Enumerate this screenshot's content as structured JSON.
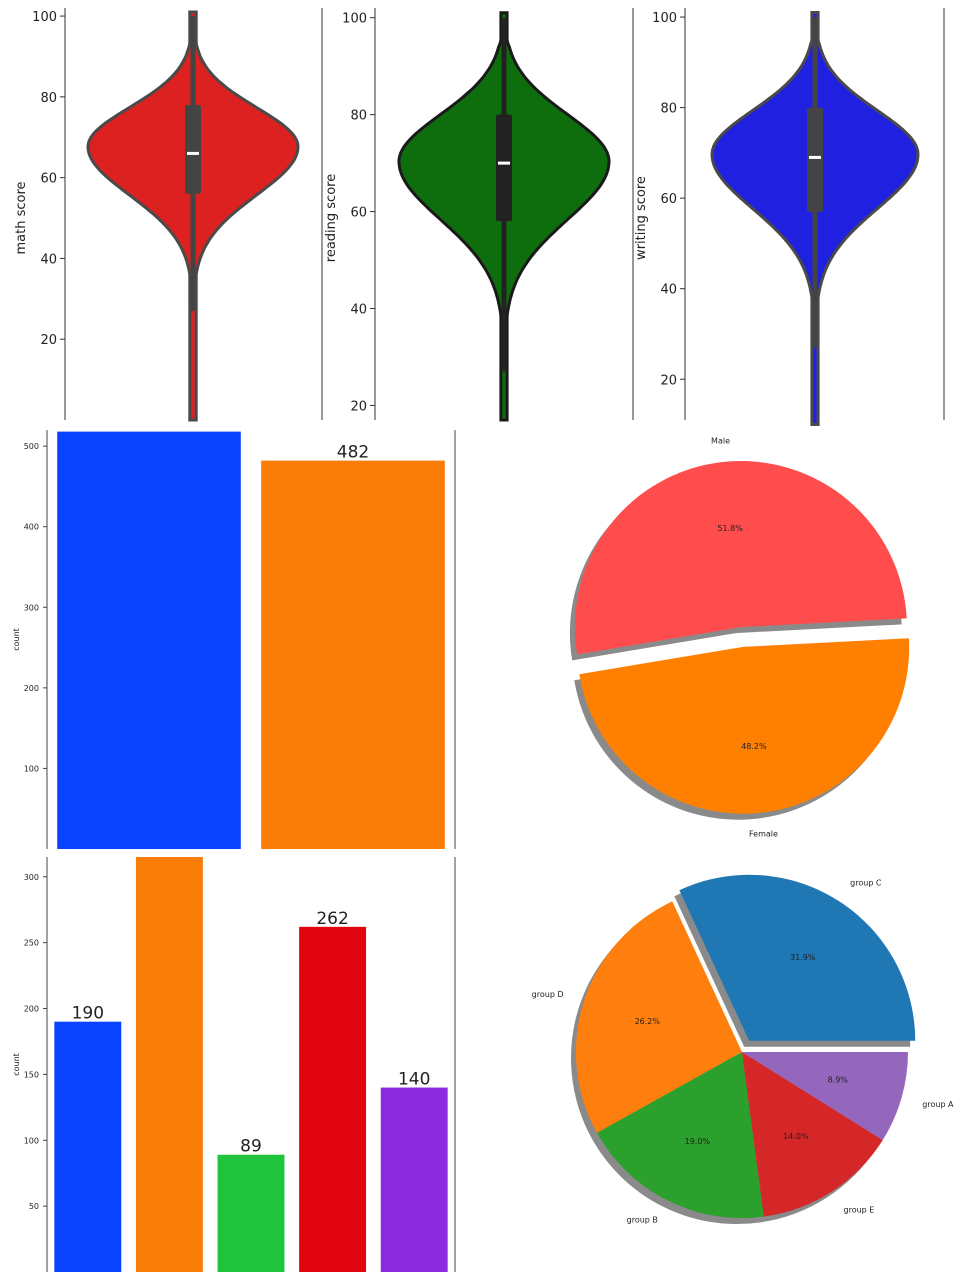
{
  "chart_data": [
    {
      "type": "violin",
      "ylabel": "math score",
      "ylim": [
        0,
        102
      ],
      "yticks": [
        20,
        40,
        60,
        80,
        100
      ],
      "color": "#dd2020",
      "outline": "#4a4a4a",
      "box": {
        "q1": 56,
        "median": 66,
        "q3": 78,
        "whisker_low": 27,
        "whisker_high": 100,
        "min": 0,
        "max": 100
      }
    },
    {
      "type": "violin",
      "ylabel": "reading score",
      "ylim": [
        17,
        102
      ],
      "yticks": [
        20,
        40,
        60,
        80,
        100
      ],
      "color": "#0e6e0e",
      "outline": "#1a1a1a",
      "box": {
        "q1": 58,
        "median": 70,
        "q3": 80,
        "whisker_low": 27,
        "whisker_high": 100,
        "min": 17,
        "max": 100
      }
    },
    {
      "type": "violin",
      "ylabel": "writing score",
      "ylim": [
        11,
        102
      ],
      "yticks": [
        20,
        40,
        60,
        80,
        100
      ],
      "color": "#1f20e0",
      "outline": "#4a4a4a",
      "box": {
        "q1": 57,
        "median": 69,
        "q3": 80,
        "whisker_low": 27,
        "whisker_high": 100,
        "min": 10,
        "max": 100
      }
    },
    {
      "type": "bar",
      "ylabel": "count",
      "ylim": [
        0,
        520
      ],
      "yticks": [
        100,
        200,
        300,
        400,
        500
      ],
      "values": [
        518,
        482
      ],
      "colors": [
        "#0a43ff",
        "#f87c06"
      ],
      "data_labels": [
        "",
        "482"
      ]
    },
    {
      "type": "pie",
      "labels": [
        "Male",
        "Female"
      ],
      "values": [
        51.8,
        48.2
      ],
      "pct_labels": [
        "51.8%",
        "48.2%"
      ],
      "colors": [
        "#ff4d4d",
        "#ff8000"
      ],
      "explode": [
        0.06,
        0.06
      ]
    },
    {
      "type": "bar",
      "ylabel": "count",
      "ylim": [
        0,
        315
      ],
      "yticks": [
        50,
        100,
        150,
        200,
        250,
        300
      ],
      "values": [
        190,
        319,
        89,
        262,
        140
      ],
      "colors": [
        "#0a43ff",
        "#f87c06",
        "#1fc43c",
        "#e0050f",
        "#8b2be0"
      ],
      "data_labels": [
        "190",
        "",
        "89",
        "262",
        "140"
      ]
    },
    {
      "type": "pie",
      "labels": [
        "group C",
        "group D",
        "group B",
        "group E",
        "group A"
      ],
      "values": [
        31.9,
        26.2,
        19.0,
        14.0,
        8.9
      ],
      "pct_labels": [
        "31.9%",
        "26.2%",
        "19.0%",
        "14.0%",
        "8.9%"
      ],
      "colors": [
        "#1f77b4",
        "#ff7f0e",
        "#2ca02c",
        "#d62728",
        "#9467bd"
      ],
      "explode": [
        0.08,
        0,
        0,
        0,
        0
      ]
    }
  ]
}
